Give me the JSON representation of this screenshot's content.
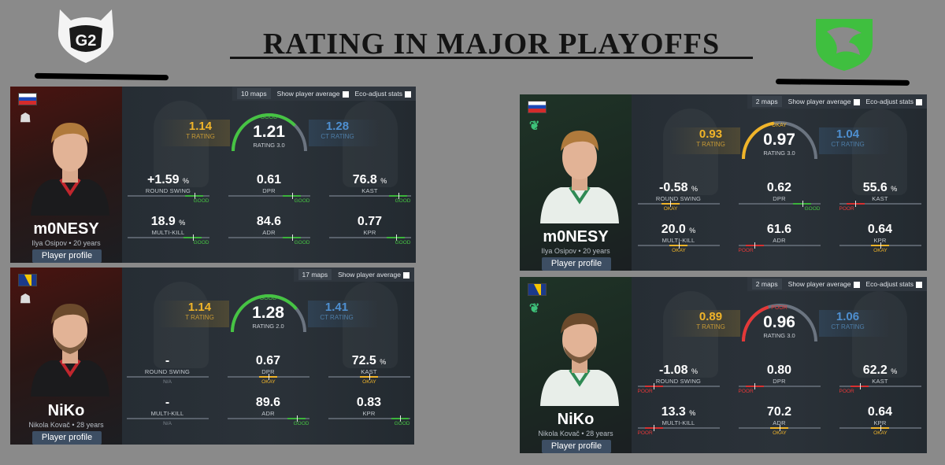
{
  "title": "RATING IN MAJOR PLAYOFFS",
  "colors": {
    "good": "#46c443",
    "okay": "#f0b429",
    "poor": "#e53838",
    "t_side": "#f0b429",
    "ct_side": "#4e8fd0"
  },
  "cards": [
    {
      "id": "g2-monesy",
      "team": "G2",
      "flag": "ru",
      "name": "m0NESY",
      "sub": "Ilya Osipov • 20 years",
      "profile": "Player profile",
      "maps": "10 maps",
      "show_avg": "Show player average",
      "eco": "Eco-adjust stats",
      "t_rating": "1.14",
      "t_label": "T RATING",
      "rating": "1.21",
      "rating_label": "RATING 3.0",
      "verdict": "GOOD",
      "gauge_level": 0.75,
      "ct_rating": "1.28",
      "ct_label": "CT RATING",
      "stats": [
        {
          "value": "+1.59",
          "unit": "%",
          "label": "ROUND SWING",
          "tag": "GOOD",
          "level": 0.82
        },
        {
          "value": "0.61",
          "unit": "",
          "label": "DPR",
          "tag": "GOOD",
          "level": 0.78
        },
        {
          "value": "76.8",
          "unit": "%",
          "label": "KAST",
          "tag": "GOOD",
          "level": 0.85
        },
        {
          "value": "18.9",
          "unit": "%",
          "label": "MULTI-KILL",
          "tag": "GOOD",
          "level": 0.8
        },
        {
          "value": "84.6",
          "unit": "",
          "label": "ADR",
          "tag": "GOOD",
          "level": 0.78
        },
        {
          "value": "0.77",
          "unit": "",
          "label": "KPR",
          "tag": "GOOD",
          "level": 0.82
        }
      ]
    },
    {
      "id": "g2-niko",
      "team": "G2",
      "flag": "ba",
      "name": "NiKo",
      "sub": "Nikola Kovač • 28 years",
      "profile": "Player profile",
      "maps": "17 maps",
      "show_avg": "Show player average",
      "eco": "",
      "t_rating": "1.14",
      "t_label": "T RATING",
      "rating": "1.28",
      "rating_label": "RATING 2.0",
      "verdict": "GOOD",
      "gauge_level": 0.78,
      "ct_rating": "1.41",
      "ct_label": "CT RATING",
      "stats": [
        {
          "value": "-",
          "unit": "",
          "label": "ROUND SWING",
          "tag": "N/A",
          "level": 0
        },
        {
          "value": "0.67",
          "unit": "",
          "label": "DPR",
          "tag": "OKAY",
          "level": 0.5
        },
        {
          "value": "72.5",
          "unit": "%",
          "label": "KAST",
          "tag": "OKAY",
          "level": 0.5
        },
        {
          "value": "-",
          "unit": "",
          "label": "MULTI-KILL",
          "tag": "N/A",
          "level": 0
        },
        {
          "value": "89.6",
          "unit": "",
          "label": "ADR",
          "tag": "GOOD",
          "level": 0.85
        },
        {
          "value": "0.83",
          "unit": "",
          "label": "KPR",
          "tag": "GOOD",
          "level": 0.88
        }
      ]
    },
    {
      "id": "falcons-monesy",
      "team": "Falcons",
      "flag": "ru",
      "name": "m0NESY",
      "sub": "Ilya Osipov • 20 years",
      "profile": "Player profile",
      "maps": "2 maps",
      "show_avg": "Show player average",
      "eco": "Eco-adjust stats",
      "t_rating": "0.93",
      "t_label": "T RATING",
      "rating": "0.97",
      "rating_label": "RATING 3.0",
      "verdict": "OKAY",
      "gauge_level": 0.45,
      "ct_rating": "1.04",
      "ct_label": "CT RATING",
      "stats": [
        {
          "value": "-0.58",
          "unit": "%",
          "label": "ROUND SWING",
          "tag": "OKAY",
          "level": 0.4
        },
        {
          "value": "0.62",
          "unit": "",
          "label": "DPR",
          "tag": "GOOD",
          "level": 0.78
        },
        {
          "value": "55.6",
          "unit": "%",
          "label": "KAST",
          "tag": "POOR",
          "level": 0.2
        },
        {
          "value": "20.0",
          "unit": "%",
          "label": "MULTI-KILL",
          "tag": "OKAY",
          "level": 0.5
        },
        {
          "value": "61.6",
          "unit": "",
          "label": "ADR",
          "tag": "POOR",
          "level": 0.2
        },
        {
          "value": "0.64",
          "unit": "",
          "label": "KPR",
          "tag": "OKAY",
          "level": 0.5
        }
      ]
    },
    {
      "id": "falcons-niko",
      "team": "Falcons",
      "flag": "ba",
      "name": "NiKo",
      "sub": "Nikola Kovač • 28 years",
      "profile": "Player profile",
      "maps": "2 maps",
      "show_avg": "Show player average",
      "eco": "Eco-adjust stats",
      "t_rating": "0.89",
      "t_label": "T RATING",
      "rating": "0.96",
      "rating_label": "RATING 3.0",
      "verdict": "POOR",
      "gauge_level": 0.4,
      "ct_rating": "1.06",
      "ct_label": "CT RATING",
      "stats": [
        {
          "value": "-1.08",
          "unit": "%",
          "label": "ROUND SWING",
          "tag": "POOR",
          "level": 0.2
        },
        {
          "value": "0.80",
          "unit": "",
          "label": "DPR",
          "tag": "POOR",
          "level": 0.2
        },
        {
          "value": "62.2",
          "unit": "%",
          "label": "KAST",
          "tag": "POOR",
          "level": 0.25
        },
        {
          "value": "13.3",
          "unit": "%",
          "label": "MULTI-KILL",
          "tag": "POOR",
          "level": 0.2
        },
        {
          "value": "70.2",
          "unit": "",
          "label": "ADR",
          "tag": "OKAY",
          "level": 0.5
        },
        {
          "value": "0.64",
          "unit": "",
          "label": "KPR",
          "tag": "OKAY",
          "level": 0.5
        }
      ]
    }
  ]
}
